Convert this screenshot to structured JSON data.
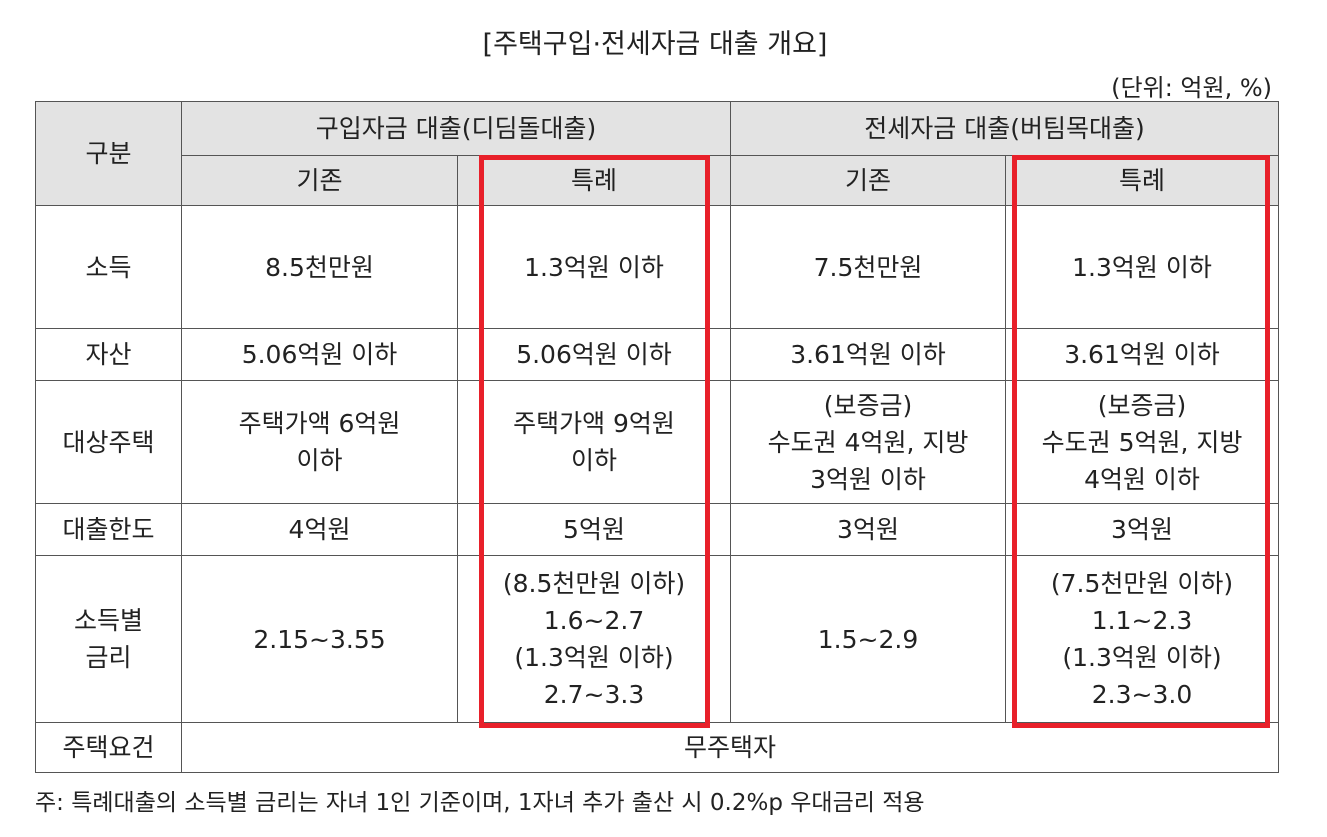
{
  "title": "[주택구입·전세자금 대출 개요]",
  "unit": "(단위: 억원, %)",
  "table": {
    "header": {
      "corner": "구분",
      "groups": [
        "구입자금 대출(디딤돌대출)",
        "전세자금 대출(버팀목대출)"
      ],
      "sub": [
        "기존",
        "특례",
        "기존",
        "특례"
      ]
    },
    "rows": [
      {
        "label": [
          "소득"
        ],
        "cells": [
          [
            "8.5천만원"
          ],
          [
            "1.3억원 이하"
          ],
          [
            "7.5천만원"
          ],
          [
            "1.3억원 이하"
          ]
        ]
      },
      {
        "label": [
          "자산"
        ],
        "cells": [
          [
            "5.06억원 이하"
          ],
          [
            "5.06억원 이하"
          ],
          [
            "3.61억원 이하"
          ],
          [
            "3.61억원 이하"
          ]
        ]
      },
      {
        "label": [
          "대상주택"
        ],
        "cells": [
          [
            "주택가액 6억원",
            "이하"
          ],
          [
            "주택가액 9억원",
            "이하"
          ],
          [
            "(보증금)",
            "수도권 4억원, 지방",
            "3억원 이하"
          ],
          [
            "(보증금)",
            "수도권 5억원, 지방",
            "4억원 이하"
          ]
        ]
      },
      {
        "label": [
          "대출한도"
        ],
        "cells": [
          [
            "4억원"
          ],
          [
            "5억원"
          ],
          [
            "3억원"
          ],
          [
            "3억원"
          ]
        ]
      },
      {
        "label": [
          "소득별",
          "금리"
        ],
        "cells": [
          [
            "2.15~3.55"
          ],
          [
            "(8.5천만원 이하)",
            "1.6~2.7",
            "(1.3억원 이하)",
            "2.7~3.3"
          ],
          [
            "1.5~2.9"
          ],
          [
            "(7.5천만원 이하)",
            "1.1~2.3",
            "(1.3억원 이하)",
            "2.3~3.0"
          ]
        ]
      },
      {
        "label": [
          "주택요건"
        ],
        "cells": [
          [
            "무주택자"
          ]
        ]
      }
    ]
  },
  "note": "주: 특례대출의 소득별 금리는 자녀 1인 기준이며, 1자녀 추가 출산 시 0.2%p 우대금리 적용"
}
